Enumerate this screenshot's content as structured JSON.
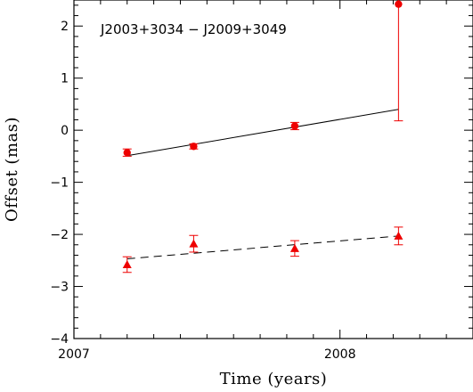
{
  "chart_data": {
    "type": "scatter",
    "title": "J2003+3034 − J2009+3049",
    "xlabel": "Time (years)",
    "ylabel": "Offset (mas)",
    "xlim": [
      2007.0,
      2008.5
    ],
    "ylim": [
      -4,
      2.5
    ],
    "x_ticks": [
      "2007",
      "2008"
    ],
    "y_ticks": [
      "−4",
      "−3",
      "−2",
      "−1",
      "0",
      "1",
      "2"
    ],
    "marker_color": "#ee0000",
    "series": [
      {
        "marker": "circle",
        "fit_line": "solid",
        "points": [
          {
            "x": 2007.2,
            "y": -0.43,
            "err": 0.07
          },
          {
            "x": 2007.45,
            "y": -0.31,
            "err": 0.05
          },
          {
            "x": 2007.83,
            "y": 0.08,
            "err": 0.07
          },
          {
            "x": 2008.22,
            "y": 2.42,
            "err": 2.24
          }
        ],
        "fit": {
          "x": [
            2007.2,
            2008.22
          ],
          "y": [
            -0.49,
            0.4
          ]
        }
      },
      {
        "marker": "triangle",
        "fit_line": "dashed",
        "points": [
          {
            "x": 2007.2,
            "y": -2.58,
            "err": 0.15
          },
          {
            "x": 2007.45,
            "y": -2.18,
            "err": 0.16
          },
          {
            "x": 2007.83,
            "y": -2.27,
            "err": 0.15
          },
          {
            "x": 2008.22,
            "y": -2.03,
            "err": 0.17
          }
        ],
        "fit": {
          "x": [
            2007.2,
            2008.22
          ],
          "y": [
            -2.47,
            -2.03
          ]
        }
      }
    ]
  }
}
